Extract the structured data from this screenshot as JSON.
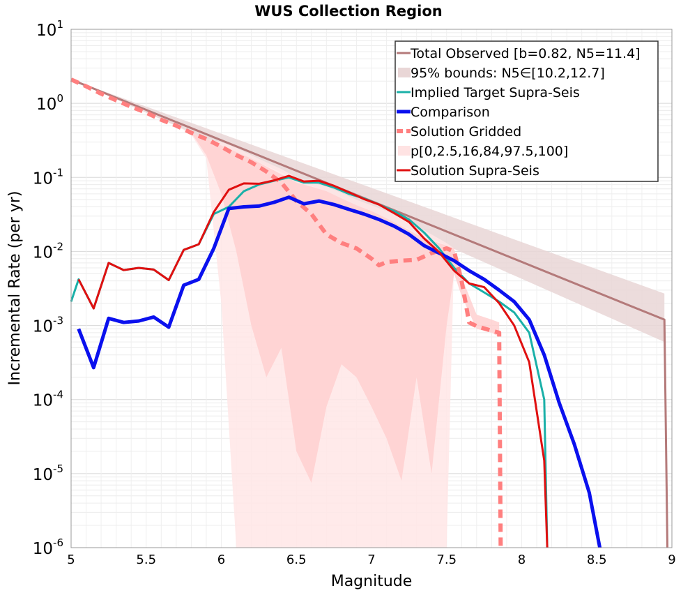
{
  "chart_data": {
    "type": "line",
    "title": "WUS Collection Region",
    "xlabel": "Magnitude",
    "ylabel": "Incremental Rate (per yr)",
    "xlim": [
      5,
      9
    ],
    "ylim_exponent": [
      -6,
      1
    ],
    "yscale": "log",
    "grid": true,
    "legend_position": "top-right",
    "x_ticks": [
      "5",
      "5.5",
      "6",
      "6.5",
      "7",
      "7.5",
      "8",
      "8.5",
      "9"
    ],
    "y_tick_base": "10",
    "y_tick_exponents": [
      "-6",
      "-5",
      "-4",
      "-3",
      "-2",
      "-1",
      "0",
      "1"
    ],
    "legend": [
      {
        "label": "Total Observed [b=0.82, N5=11.4]",
        "style": "line",
        "color": "#b47a7a"
      },
      {
        "label": "95% bounds: N5∈[10.2,12.7]",
        "style": "patch",
        "color": "#e9d6d6"
      },
      {
        "label": "Implied Target Supra-Seis",
        "style": "line",
        "color": "#1ab0a8"
      },
      {
        "label": "Comparison",
        "style": "thick",
        "color": "#0a10ee"
      },
      {
        "label": "Solution Gridded",
        "style": "dashed",
        "color": "#ff7f7f"
      },
      {
        "label": "p[0,2.5,16,84,97.5,100]",
        "style": "patch",
        "color": "#ffe3e3"
      },
      {
        "label": "Solution Supra-Seis",
        "style": "line",
        "color": "#e01010"
      }
    ],
    "series": [
      {
        "key": "total_observed",
        "color": "#b47a7a",
        "x": [
          5.0,
          8.95,
          8.97
        ],
        "y": [
          2.1,
          0.0012,
          1e-06
        ]
      },
      {
        "key": "implied_target",
        "color": "#1ab0a8",
        "x": [
          5.0,
          5.05,
          5.15,
          5.25,
          5.35,
          5.45,
          5.55,
          5.65,
          5.75,
          5.85,
          5.95,
          6.05,
          6.15,
          6.25,
          6.35,
          6.45,
          6.55,
          6.65,
          6.75,
          6.85,
          6.95,
          7.05,
          7.15,
          7.25,
          7.35,
          7.45,
          7.55,
          7.65,
          7.75,
          7.85,
          7.95,
          8.05,
          8.15,
          8.17
        ],
        "y": [
          0.0021,
          0.0042,
          0.0017,
          0.007,
          0.0056,
          0.006,
          0.0057,
          0.0041,
          0.0105,
          0.0125,
          0.032,
          0.04,
          0.065,
          0.08,
          0.09,
          0.1,
          0.085,
          0.085,
          0.073,
          0.06,
          0.052,
          0.043,
          0.035,
          0.027,
          0.018,
          0.011,
          0.006,
          0.0037,
          0.0028,
          0.0021,
          0.0015,
          0.0008,
          0.0001,
          1e-06
        ]
      },
      {
        "key": "comparison",
        "color": "#0a10ee",
        "x": [
          5.05,
          5.15,
          5.25,
          5.35,
          5.45,
          5.55,
          5.65,
          5.75,
          5.85,
          5.95,
          6.05,
          6.15,
          6.25,
          6.35,
          6.45,
          6.55,
          6.65,
          6.75,
          6.85,
          6.95,
          7.05,
          7.15,
          7.25,
          7.35,
          7.45,
          7.55,
          7.65,
          7.75,
          7.85,
          7.95,
          8.05,
          8.15,
          8.25,
          8.35,
          8.45,
          8.52
        ],
        "y": [
          0.0009,
          0.00027,
          0.00125,
          0.0011,
          0.00115,
          0.0013,
          0.00095,
          0.0035,
          0.0042,
          0.011,
          0.038,
          0.04,
          0.041,
          0.046,
          0.054,
          0.044,
          0.048,
          0.043,
          0.037,
          0.032,
          0.027,
          0.022,
          0.017,
          0.012,
          0.0095,
          0.0075,
          0.0055,
          0.0042,
          0.003,
          0.0021,
          0.0012,
          0.0004,
          9e-05,
          2.5e-05,
          5.5e-06,
          1e-06
        ]
      },
      {
        "key": "solution_gridded",
        "color": "#ff7f7f",
        "x": [
          5.0,
          5.1,
          5.2,
          5.3,
          5.4,
          5.5,
          5.6,
          5.7,
          5.8,
          5.9,
          6.0,
          6.1,
          6.2,
          6.3,
          6.4,
          6.5,
          6.6,
          6.7,
          6.8,
          6.9,
          7.0,
          7.05,
          7.1,
          7.2,
          7.3,
          7.4,
          7.5,
          7.55,
          7.6,
          7.65,
          7.7,
          7.8,
          7.85,
          7.86
        ],
        "y": [
          2.1,
          1.7,
          1.35,
          1.1,
          0.9,
          0.75,
          0.6,
          0.5,
          0.4,
          0.33,
          0.26,
          0.2,
          0.16,
          0.12,
          0.085,
          0.048,
          0.032,
          0.017,
          0.013,
          0.011,
          0.008,
          0.0065,
          0.0072,
          0.0075,
          0.0077,
          0.0095,
          0.011,
          0.01,
          0.004,
          0.0011,
          0.00098,
          0.00085,
          0.0008,
          1e-06
        ]
      },
      {
        "key": "solution_supra",
        "color": "#e01010",
        "x": [
          5.05,
          5.15,
          5.25,
          5.35,
          5.45,
          5.55,
          5.65,
          5.75,
          5.85,
          5.95,
          6.05,
          6.15,
          6.25,
          6.35,
          6.45,
          6.55,
          6.65,
          6.75,
          6.85,
          6.95,
          7.05,
          7.15,
          7.25,
          7.35,
          7.45,
          7.55,
          7.65,
          7.75,
          7.85,
          7.95,
          8.05,
          8.15,
          8.17
        ],
        "y": [
          0.0042,
          0.0017,
          0.007,
          0.0056,
          0.006,
          0.0057,
          0.0041,
          0.0105,
          0.0125,
          0.034,
          0.068,
          0.083,
          0.082,
          0.091,
          0.105,
          0.088,
          0.09,
          0.077,
          0.063,
          0.051,
          0.043,
          0.033,
          0.025,
          0.015,
          0.0098,
          0.0055,
          0.0037,
          0.0033,
          0.002,
          0.001,
          0.00032,
          1.5e-05,
          1e-06
        ]
      }
    ],
    "bands": [
      {
        "key": "observed_bounds",
        "color": "#e9d6d6",
        "x": [
          5.0,
          8.95
        ],
        "lower": [
          2.1,
          0.0006
        ],
        "upper": [
          2.1,
          0.0027
        ]
      },
      {
        "key": "p2_5_97_5",
        "color": "#ffe6e6",
        "x": [
          5.7,
          5.8,
          5.9,
          6.0,
          6.1,
          6.2,
          6.3,
          6.4,
          6.5,
          6.6,
          6.7,
          6.8,
          6.9,
          7.0,
          7.1,
          7.2,
          7.3,
          7.4,
          7.5,
          7.55
        ],
        "lower": [
          0.5,
          0.38,
          0.18,
          0.002,
          1e-06,
          1e-06,
          1e-06,
          1e-06,
          1e-06,
          1e-06,
          1e-06,
          1e-06,
          1e-06,
          1e-06,
          1e-06,
          1e-06,
          1e-06,
          1e-06,
          1e-06,
          0.009
        ],
        "upper": [
          0.5,
          0.4,
          0.33,
          0.3,
          0.25,
          0.2,
          0.16,
          0.13,
          0.1,
          0.085,
          0.075,
          0.062,
          0.05,
          0.042,
          0.035,
          0.028,
          0.022,
          0.017,
          0.013,
          0.011
        ]
      },
      {
        "key": "p16_84",
        "color": "#ffd0d0",
        "x": [
          5.8,
          5.9,
          6.0,
          6.1,
          6.2,
          6.3,
          6.4,
          6.5,
          6.6,
          6.7,
          6.8,
          6.9,
          7.0,
          7.1,
          7.2,
          7.3,
          7.4,
          7.5,
          7.55,
          7.6,
          7.7,
          7.8,
          7.85
        ],
        "lower": [
          0.4,
          0.2,
          0.06,
          0.01,
          0.001,
          0.0002,
          0.0005,
          2e-05,
          7.5e-06,
          8e-05,
          0.0003,
          0.0002,
          8e-05,
          3e-05,
          8e-06,
          0.0002,
          1e-05,
          0.001,
          0.005,
          0.0025,
          0.0009,
          0.0008,
          0.0007
        ],
        "upper": [
          0.4,
          0.33,
          0.27,
          0.22,
          0.18,
          0.14,
          0.11,
          0.085,
          0.075,
          0.065,
          0.052,
          0.042,
          0.035,
          0.028,
          0.022,
          0.017,
          0.014,
          0.012,
          0.011,
          0.0045,
          0.0014,
          0.0012,
          0.0011
        ]
      }
    ]
  }
}
